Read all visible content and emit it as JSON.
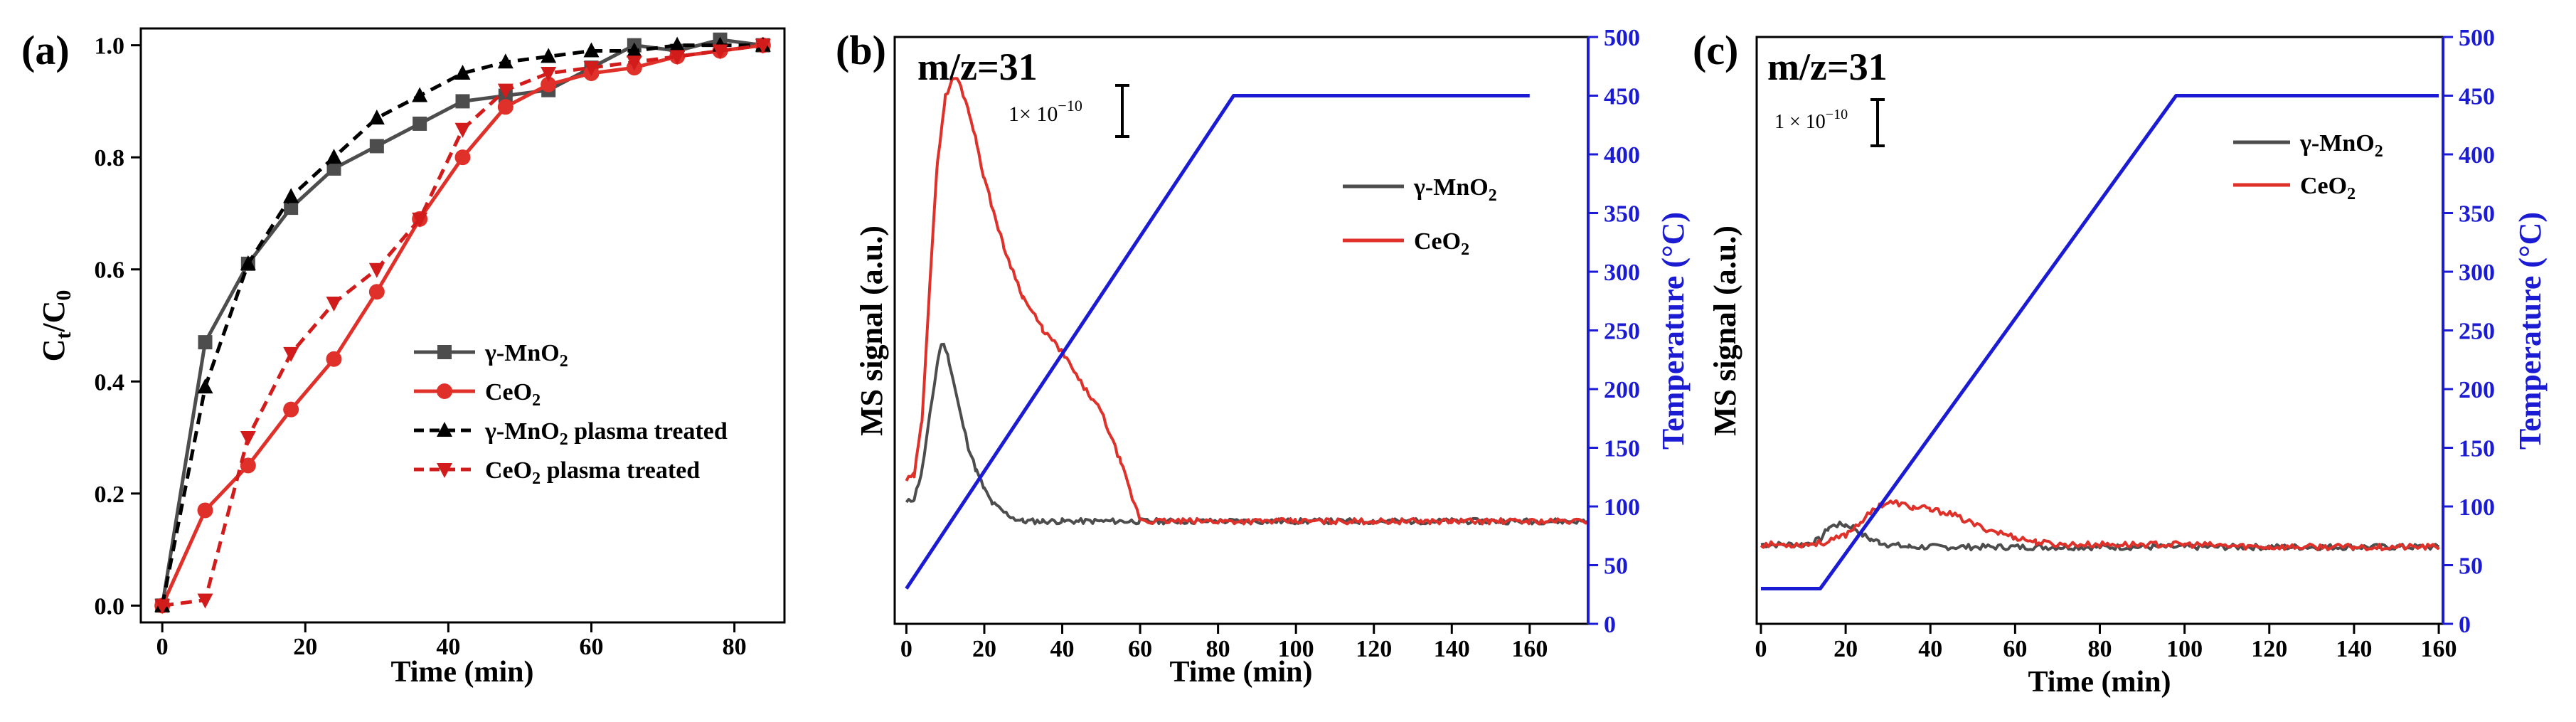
{
  "colors": {
    "black": "#000000",
    "gray": "#4d4d4d",
    "red": "#e0302a",
    "red_dark": "#d21c1c",
    "blue": "#1b1bd4"
  },
  "chart_data": [
    {
      "id": "a",
      "panel_label": "(a)",
      "type": "line",
      "xlabel": "Time (min)",
      "ylabel": "Ct/C0",
      "ylabel_parts": {
        "main1": "C",
        "sub1": "t",
        "slash": "/C",
        "sub2": "0"
      },
      "xlim": [
        -3,
        87
      ],
      "ylim": [
        -0.03,
        1.03
      ],
      "xticks": [
        "0",
        "20",
        "40",
        "60",
        "80"
      ],
      "yticks": [
        "0.0",
        "0.2",
        "0.4",
        "0.6",
        "0.8",
        "1.0"
      ],
      "legend_position": "lower-right",
      "series": [
        {
          "name": "γ-MnO2",
          "legend": {
            "base": "γ-MnO",
            "sub": "2",
            "tail": ""
          },
          "style": "solid",
          "marker": "square",
          "color": "#4d4d4d",
          "x": [
            0,
            6,
            12,
            18,
            24,
            30,
            36,
            42,
            48,
            54,
            60,
            66,
            72,
            78,
            84
          ],
          "y": [
            0.0,
            0.47,
            0.61,
            0.71,
            0.78,
            0.82,
            0.86,
            0.9,
            0.91,
            0.92,
            0.96,
            1.0,
            0.99,
            1.01,
            1.0
          ]
        },
        {
          "name": "CeO2",
          "legend": {
            "base": "CeO",
            "sub": "2",
            "tail": ""
          },
          "style": "solid",
          "marker": "circle",
          "color": "#e0302a",
          "x": [
            0,
            6,
            12,
            18,
            24,
            30,
            36,
            42,
            48,
            54,
            60,
            66,
            72,
            78,
            84
          ],
          "y": [
            0.0,
            0.17,
            0.25,
            0.35,
            0.44,
            0.56,
            0.69,
            0.8,
            0.89,
            0.93,
            0.95,
            0.96,
            0.98,
            0.99,
            1.0
          ]
        },
        {
          "name": "γ-MnO2 plasma treated",
          "legend": {
            "base": "γ-MnO",
            "sub": "2",
            "tail": " plasma treated"
          },
          "style": "dashed",
          "marker": "triangle-up",
          "color": "#000000",
          "x": [
            0,
            6,
            12,
            18,
            24,
            30,
            36,
            42,
            48,
            54,
            60,
            66,
            72,
            78,
            84
          ],
          "y": [
            0.0,
            0.39,
            0.61,
            0.73,
            0.8,
            0.87,
            0.91,
            0.95,
            0.97,
            0.98,
            0.99,
            0.99,
            1.0,
            1.0,
            1.0
          ]
        },
        {
          "name": "CeO2 plasma treated",
          "legend": {
            "base": "CeO",
            "sub": "2",
            "tail": " plasma treated"
          },
          "style": "dashed",
          "marker": "triangle-down",
          "color": "#d21c1c",
          "x": [
            0,
            6,
            12,
            18,
            24,
            30,
            36,
            42,
            48,
            54,
            60,
            66,
            72,
            78,
            84
          ],
          "y": [
            0.0,
            0.01,
            0.3,
            0.45,
            0.54,
            0.6,
            0.69,
            0.85,
            0.92,
            0.95,
            0.96,
            0.97,
            0.98,
            0.99,
            1.0
          ]
        }
      ]
    },
    {
      "id": "b",
      "panel_label": "(b)",
      "type": "line",
      "annotation": "m/z=31",
      "scale_bar": {
        "base": "1× 10",
        "exp": "−10"
      },
      "xlabel": "Time (min)",
      "ylabel": "MS signal (a.u.)",
      "y2label": "Temperature (°C)",
      "xlim": [
        -3,
        175
      ],
      "y2lim": [
        0,
        500
      ],
      "xticks": [
        "0",
        "20",
        "40",
        "60",
        "80",
        "100",
        "120",
        "140",
        "160"
      ],
      "y2ticks": [
        "0",
        "50",
        "100",
        "150",
        "200",
        "250",
        "300",
        "350",
        "400",
        "450",
        "500"
      ],
      "legend_position": "right",
      "series": [
        {
          "name": "γ-MnO2",
          "legend": {
            "base": "γ-MnO",
            "sub": "2"
          },
          "color": "#4d4d4d",
          "x": [
            0,
            2,
            4,
            6,
            8,
            9,
            10,
            11,
            12,
            14,
            16,
            18,
            20,
            22,
            25,
            28,
            30,
            35,
            40,
            50,
            60,
            80,
            100,
            120,
            140,
            160,
            175
          ],
          "y": [
            0.07,
            0.08,
            0.14,
            0.26,
            0.38,
            0.42,
            0.41,
            0.38,
            0.34,
            0.26,
            0.19,
            0.14,
            0.1,
            0.07,
            0.05,
            0.035,
            0.03,
            0.03,
            0.03,
            0.03,
            0.03,
            0.03,
            0.03,
            0.03,
            0.03,
            0.03,
            0.03
          ]
        },
        {
          "name": "CeO2",
          "legend": {
            "base": "CeO",
            "sub": "2"
          },
          "color": "#e0302a",
          "x": [
            0,
            2,
            4,
            6,
            8,
            10,
            12,
            13,
            14,
            16,
            18,
            20,
            25,
            30,
            35,
            40,
            45,
            50,
            55,
            58,
            60,
            62,
            80,
            100,
            120,
            140,
            160,
            175
          ],
          "y": [
            0.12,
            0.13,
            0.25,
            0.55,
            0.82,
            0.96,
            1.0,
            1.0,
            0.98,
            0.93,
            0.86,
            0.78,
            0.63,
            0.52,
            0.45,
            0.4,
            0.33,
            0.27,
            0.16,
            0.08,
            0.035,
            0.03,
            0.03,
            0.03,
            0.03,
            0.03,
            0.03,
            0.03
          ]
        },
        {
          "name": "Temperature",
          "axis": "right",
          "color": "#1b1bd4",
          "x": [
            0,
            84,
            160
          ],
          "y": [
            30,
            450,
            450
          ]
        }
      ]
    },
    {
      "id": "c",
      "panel_label": "(c)",
      "type": "line",
      "annotation": "m/z=31",
      "scale_bar": {
        "base": "1 × 10",
        "exp": "−10"
      },
      "xlabel": "Time (min)",
      "ylabel": "MS signal (a.u.)",
      "y2label": "Temperature (°C)",
      "xlim": [
        -1,
        161
      ],
      "y2lim": [
        0,
        500
      ],
      "xticks": [
        "0",
        "20",
        "40",
        "60",
        "80",
        "100",
        "120",
        "140",
        "160"
      ],
      "y2ticks": [
        "0",
        "50",
        "100",
        "150",
        "200",
        "250",
        "300",
        "350",
        "400",
        "450",
        "500"
      ],
      "legend_position": "top-right",
      "series": [
        {
          "name": "γ-MnO2",
          "legend": {
            "base": "γ-MnO",
            "sub": "2"
          },
          "color": "#4d4d4d",
          "x": [
            0,
            10,
            14,
            16,
            18,
            20,
            22,
            24,
            26,
            28,
            30,
            35,
            40,
            50,
            60,
            80,
            100,
            120,
            140,
            160
          ],
          "y": [
            0.05,
            0.05,
            0.06,
            0.085,
            0.09,
            0.09,
            0.085,
            0.07,
            0.06,
            0.055,
            0.05,
            0.045,
            0.045,
            0.045,
            0.045,
            0.045,
            0.045,
            0.045,
            0.045,
            0.045
          ]
        },
        {
          "name": "CeO2",
          "legend": {
            "base": "CeO",
            "sub": "2"
          },
          "color": "#e0302a",
          "x": [
            0,
            10,
            16,
            20,
            24,
            28,
            30,
            32,
            34,
            36,
            38,
            40,
            44,
            48,
            52,
            56,
            60,
            65,
            70,
            80,
            100,
            120,
            140,
            160
          ],
          "y": [
            0.05,
            0.05,
            0.055,
            0.07,
            0.1,
            0.13,
            0.135,
            0.135,
            0.13,
            0.125,
            0.125,
            0.12,
            0.115,
            0.1,
            0.085,
            0.075,
            0.065,
            0.055,
            0.05,
            0.05,
            0.05,
            0.045,
            0.045,
            0.045
          ]
        },
        {
          "name": "Temperature",
          "axis": "right",
          "color": "#1b1bd4",
          "x": [
            0,
            14,
            98,
            160
          ],
          "y": [
            30,
            30,
            450,
            450
          ]
        }
      ]
    }
  ]
}
